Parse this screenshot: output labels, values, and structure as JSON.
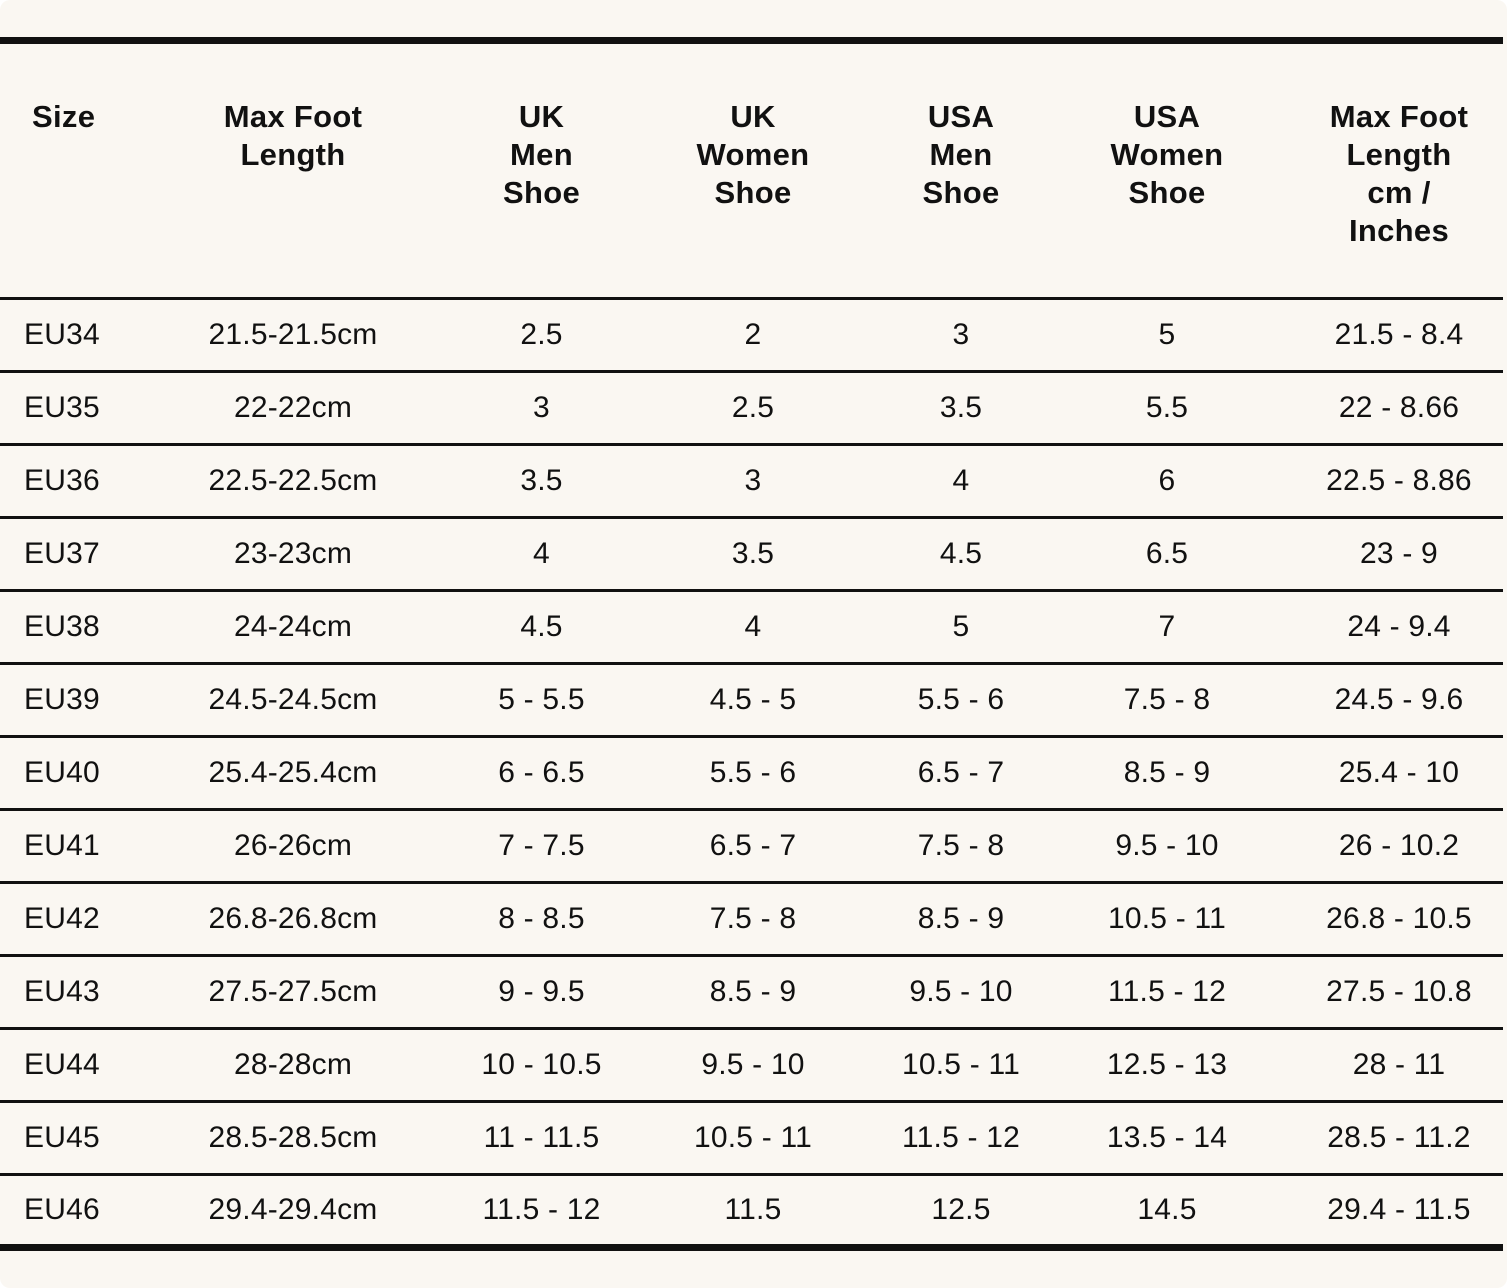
{
  "table": {
    "headers": [
      "Size",
      "Max Foot\nLength",
      "UK\nMen\nShoe",
      "UK\nWomen\nShoe",
      "USA\nMen\nShoe",
      "USA\nWomen\nShoe",
      "Max Foot\nLength\ncm /\nInches"
    ],
    "rows": [
      [
        "EU34",
        "21.5-21.5cm",
        "2.5",
        "2",
        "3",
        "5",
        "21.5 - 8.4"
      ],
      [
        "EU35",
        "22-22cm",
        "3",
        "2.5",
        "3.5",
        "5.5",
        "22 - 8.66"
      ],
      [
        "EU36",
        "22.5-22.5cm",
        "3.5",
        "3",
        "4",
        "6",
        "22.5 - 8.86"
      ],
      [
        "EU37",
        "23-23cm",
        "4",
        "3.5",
        "4.5",
        "6.5",
        "23 - 9"
      ],
      [
        "EU38",
        "24-24cm",
        "4.5",
        "4",
        "5",
        "7",
        "24 - 9.4"
      ],
      [
        "EU39",
        "24.5-24.5cm",
        "5 - 5.5",
        "4.5 - 5",
        "5.5 - 6",
        "7.5 - 8",
        "24.5 - 9.6"
      ],
      [
        "EU40",
        "25.4-25.4cm",
        "6 - 6.5",
        "5.5 - 6",
        "6.5 - 7",
        "8.5 - 9",
        "25.4 - 10"
      ],
      [
        "EU41",
        "26-26cm",
        "7 - 7.5",
        "6.5 - 7",
        "7.5 - 8",
        "9.5 - 10",
        "26 - 10.2"
      ],
      [
        "EU42",
        "26.8-26.8cm",
        "8 - 8.5",
        "7.5 - 8",
        "8.5 - 9",
        "10.5 - 11",
        "26.8 - 10.5"
      ],
      [
        "EU43",
        "27.5-27.5cm",
        "9 - 9.5",
        "8.5 - 9",
        "9.5 - 10",
        "11.5 - 12",
        "27.5 - 10.8"
      ],
      [
        "EU44",
        "28-28cm",
        "10 - 10.5",
        "9.5 - 10",
        "10.5 - 11",
        "12.5 - 13",
        "28 - 11"
      ],
      [
        "EU45",
        "28.5-28.5cm",
        "11 - 11.5",
        "10.5 - 11",
        "11.5 - 12",
        "13.5 - 14",
        "28.5 - 11.2"
      ],
      [
        "EU46",
        "29.4-29.4cm",
        "11.5 - 12",
        "11.5",
        "12.5",
        "14.5",
        "29.4 - 11.5"
      ]
    ]
  }
}
